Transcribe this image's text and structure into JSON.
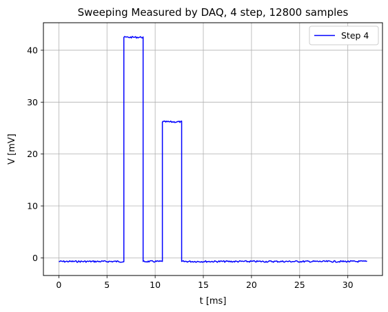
{
  "chart_data": {
    "type": "line",
    "title": "Sweeping Measured by DAQ, 4 step,  12800 samples",
    "xlabel": "t  [ms]",
    "ylabel": "V  [mV]",
    "xlim": [
      -1.6,
      33.6
    ],
    "ylim": [
      -3.4,
      45.3
    ],
    "xticks": [
      0,
      5,
      10,
      15,
      20,
      25,
      30
    ],
    "yticks": [
      0,
      10,
      20,
      30,
      40
    ],
    "grid": true,
    "legend_position": "top-right",
    "series": [
      {
        "name": "Step 4",
        "color": "#0000ff",
        "x": [
          0,
          6.75,
          6.75,
          8.75,
          8.75,
          10.75,
          10.75,
          12.75,
          12.75,
          32
        ],
        "y": [
          -0.7,
          -0.7,
          42.5,
          42.5,
          -0.7,
          -0.7,
          26.2,
          26.2,
          -0.7,
          -0.7
        ]
      }
    ]
  }
}
